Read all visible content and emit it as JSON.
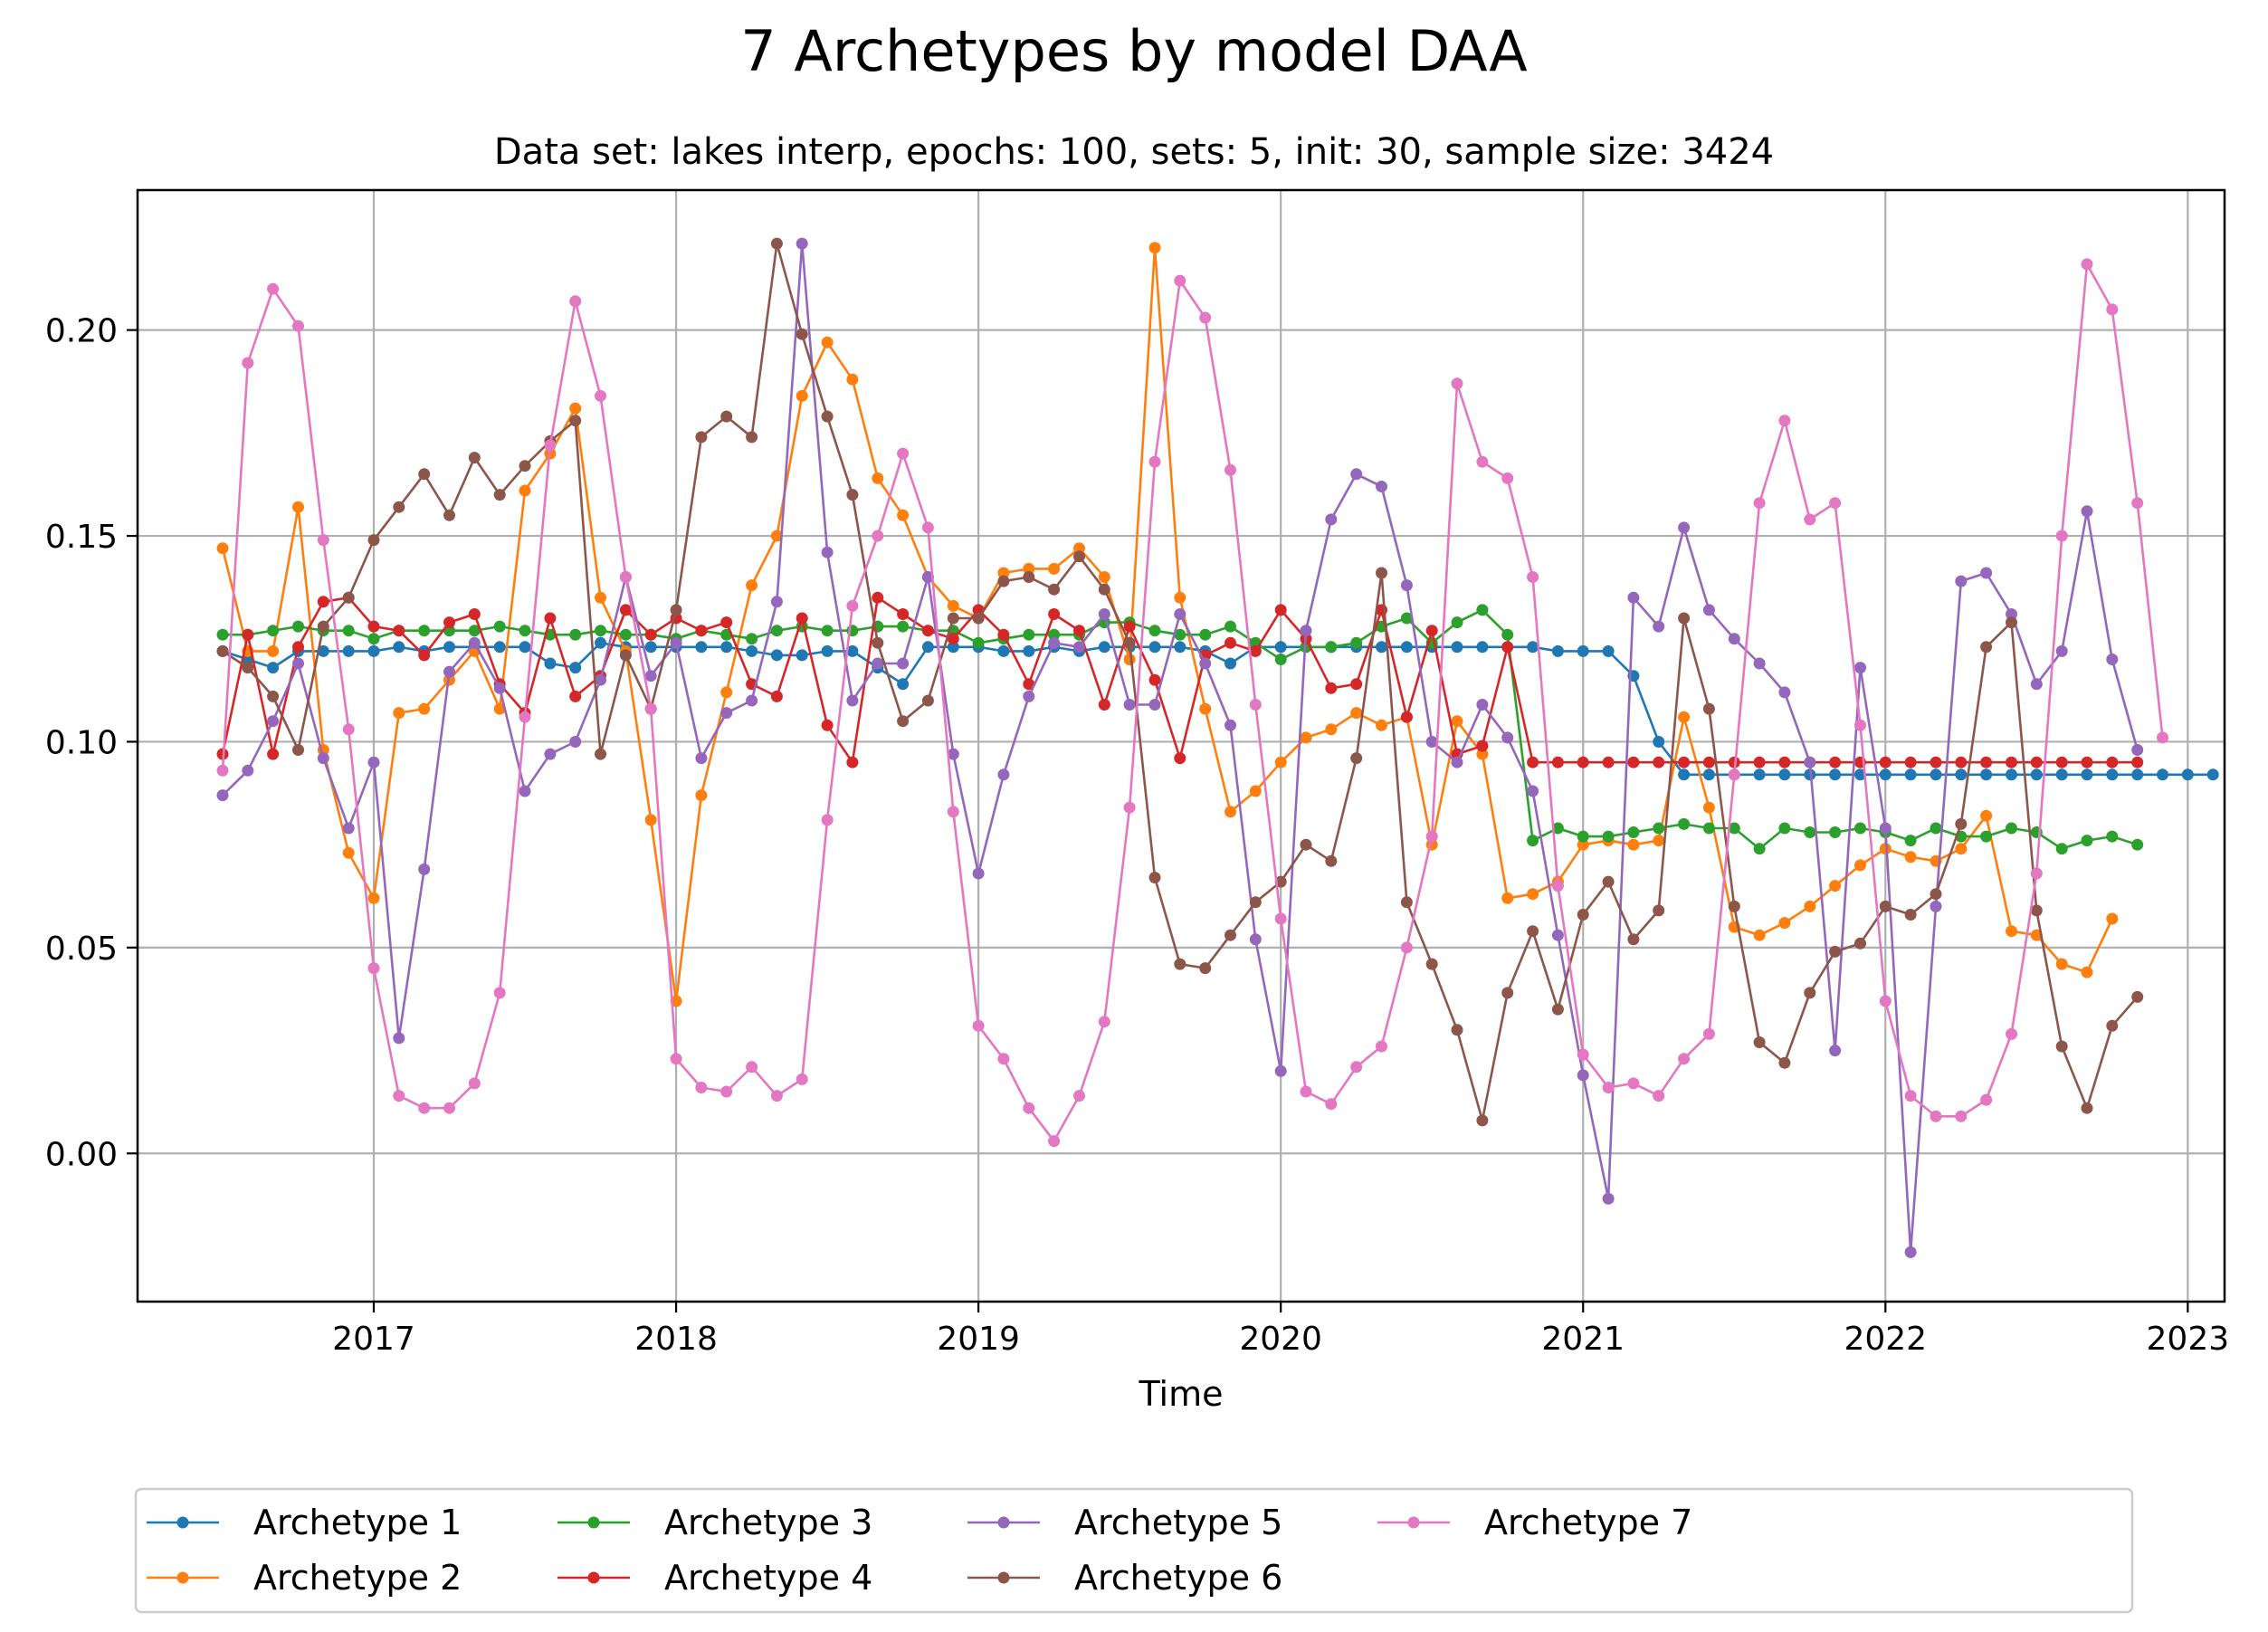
{
  "chart_data": {
    "type": "line",
    "title": "7 Archetypes by model DAA",
    "subtitle": "Data set: lakes interp, epochs: 100, sets: 5, init: 30, sample size: 3424",
    "xlabel": "Time",
    "ylabel": "",
    "x_range": [
      "2016-03-20",
      "2023-02-15"
    ],
    "ylim": [
      -0.036,
      0.234
    ],
    "x_ticks": [
      "2017",
      "2018",
      "2019",
      "2020",
      "2021",
      "2022",
      "2023"
    ],
    "y_ticks": [
      "0.00",
      "0.05",
      "0.10",
      "0.15",
      "0.20"
    ],
    "grid": true,
    "legend": {
      "position": "bottom-outside",
      "columns": 5
    },
    "x_start": "2016-07-01",
    "x_step": "monthly",
    "series": [
      {
        "name": "Archetype 1",
        "color": "#1f77b4",
        "values": [
          0.122,
          0.12,
          0.118,
          0.122,
          0.122,
          0.122,
          0.122,
          0.123,
          0.122,
          0.123,
          0.123,
          0.123,
          0.123,
          0.119,
          0.118,
          0.124,
          0.123,
          0.123,
          0.123,
          0.123,
          0.123,
          0.122,
          0.121,
          0.121,
          0.122,
          0.122,
          0.118,
          0.114,
          0.123,
          0.123,
          0.123,
          0.122,
          0.122,
          0.123,
          0.122,
          0.123,
          0.123,
          0.123,
          0.123,
          0.122,
          0.119,
          0.123,
          0.123,
          0.123,
          0.123,
          0.123,
          0.123,
          0.123,
          0.123,
          0.123,
          0.123,
          0.123,
          0.123,
          0.122,
          0.122,
          0.122,
          0.116,
          0.1,
          0.092,
          0.092,
          0.092,
          0.092,
          0.092,
          0.092,
          0.092,
          0.092,
          0.092,
          0.092,
          0.092,
          0.092,
          0.092,
          0.092,
          0.092,
          0.092,
          0.092,
          0.092,
          0.092,
          0.092,
          0.092,
          0.092
        ]
      },
      {
        "name": "Archetype 2",
        "color": "#ff7f0e",
        "values": [
          0.147,
          0.122,
          0.122,
          0.157,
          0.098,
          0.073,
          0.062,
          0.107,
          0.108,
          0.115,
          0.122,
          0.108,
          0.161,
          0.17,
          0.181,
          0.135,
          0.122,
          0.081,
          0.037,
          0.087,
          0.112,
          0.138,
          0.15,
          0.184,
          0.197,
          0.188,
          0.164,
          0.155,
          0.14,
          0.133,
          0.13,
          0.141,
          0.142,
          0.142,
          0.147,
          0.14,
          0.12,
          0.22,
          0.135,
          0.108,
          0.083,
          0.088,
          0.095,
          0.101,
          0.103,
          0.107,
          0.104,
          0.106,
          0.075,
          0.105,
          0.097,
          0.062,
          0.063,
          0.066,
          0.075,
          0.076,
          0.075,
          0.076,
          0.106,
          0.084,
          0.055,
          0.053,
          0.056,
          0.06,
          0.065,
          0.07,
          0.074,
          0.072,
          0.071,
          0.074,
          0.082,
          0.054,
          0.053,
          0.046,
          0.044,
          0.057
        ]
      },
      {
        "name": "Archetype 3",
        "color": "#2ca02c",
        "values": [
          0.126,
          0.126,
          0.127,
          0.128,
          0.127,
          0.127,
          0.125,
          0.127,
          0.127,
          0.127,
          0.127,
          0.128,
          0.127,
          0.126,
          0.126,
          0.127,
          0.126,
          0.126,
          0.125,
          0.127,
          0.126,
          0.125,
          0.127,
          0.128,
          0.127,
          0.127,
          0.128,
          0.128,
          0.127,
          0.127,
          0.124,
          0.125,
          0.126,
          0.126,
          0.126,
          0.129,
          0.129,
          0.127,
          0.126,
          0.126,
          0.128,
          0.124,
          0.12,
          0.123,
          0.123,
          0.124,
          0.128,
          0.13,
          0.124,
          0.129,
          0.132,
          0.126,
          0.076,
          0.079,
          0.077,
          0.077,
          0.078,
          0.079,
          0.08,
          0.079,
          0.079,
          0.074,
          0.079,
          0.078,
          0.078,
          0.079,
          0.078,
          0.076,
          0.079,
          0.077,
          0.077,
          0.079,
          0.078,
          0.074,
          0.076,
          0.077,
          0.075
        ]
      },
      {
        "name": "Archetype 4",
        "color": "#d62728",
        "values": [
          0.097,
          0.126,
          0.097,
          0.123,
          0.134,
          0.135,
          0.128,
          0.127,
          0.121,
          0.129,
          0.131,
          0.114,
          0.107,
          0.13,
          0.111,
          0.116,
          0.132,
          0.126,
          0.13,
          0.127,
          0.129,
          0.114,
          0.111,
          0.13,
          0.104,
          0.095,
          0.135,
          0.131,
          0.127,
          0.125,
          0.132,
          0.126,
          0.114,
          0.131,
          0.127,
          0.109,
          0.128,
          0.115,
          0.096,
          0.121,
          0.124,
          0.122,
          0.132,
          0.125,
          0.113,
          0.114,
          0.132,
          0.106,
          0.127,
          0.097,
          0.099,
          0.123,
          0.095,
          0.095,
          0.095,
          0.095,
          0.095,
          0.095,
          0.095,
          0.095,
          0.095,
          0.095,
          0.095,
          0.095,
          0.095,
          0.095,
          0.095,
          0.095,
          0.095,
          0.095,
          0.095,
          0.095,
          0.095,
          0.095,
          0.095,
          0.095,
          0.095
        ]
      },
      {
        "name": "Archetype 5",
        "color": "#9467bd",
        "values": [
          0.087,
          0.093,
          0.105,
          0.119,
          0.096,
          0.079,
          0.095,
          0.028,
          0.069,
          0.117,
          0.124,
          0.113,
          0.088,
          0.097,
          0.1,
          0.115,
          0.14,
          0.116,
          0.124,
          0.096,
          0.107,
          0.11,
          0.134,
          0.221,
          0.146,
          0.11,
          0.119,
          0.119,
          0.14,
          0.097,
          0.068,
          0.092,
          0.111,
          0.124,
          0.123,
          0.131,
          0.109,
          0.109,
          0.131,
          0.119,
          0.104,
          0.052,
          0.02,
          0.127,
          0.154,
          0.165,
          0.162,
          0.138,
          0.1,
          0.095,
          0.109,
          0.101,
          0.088,
          0.053,
          0.019,
          -0.011,
          0.135,
          0.128,
          0.152,
          0.132,
          0.125,
          0.119,
          0.112,
          0.095,
          0.025,
          0.118,
          0.079,
          -0.024,
          0.06,
          0.139,
          0.141,
          0.131,
          0.114,
          0.122,
          0.156,
          0.12,
          0.098
        ]
      },
      {
        "name": "Archetype 6",
        "color": "#8c564b",
        "values": [
          0.122,
          0.118,
          0.111,
          0.098,
          0.128,
          0.135,
          0.149,
          0.157,
          0.165,
          0.155,
          0.169,
          0.16,
          0.167,
          0.173,
          0.178,
          0.097,
          0.121,
          0.108,
          0.132,
          0.174,
          0.179,
          0.174,
          0.221,
          0.199,
          0.179,
          0.16,
          0.124,
          0.105,
          0.11,
          0.13,
          0.13,
          0.139,
          0.14,
          0.137,
          0.145,
          0.137,
          0.124,
          0.067,
          0.046,
          0.045,
          0.053,
          0.061,
          0.066,
          0.075,
          0.071,
          0.096,
          0.141,
          0.061,
          0.046,
          0.03,
          0.008,
          0.039,
          0.054,
          0.035,
          0.058,
          0.066,
          0.052,
          0.059,
          0.13,
          0.108,
          0.06,
          0.027,
          0.022,
          0.039,
          0.049,
          0.051,
          0.06,
          0.058,
          0.063,
          0.08,
          0.123,
          0.129,
          0.059,
          0.026,
          0.011,
          0.031,
          0.038
        ]
      },
      {
        "name": "Archetype 7",
        "color": "#e377c2",
        "values": [
          0.093,
          0.192,
          0.21,
          0.201,
          0.149,
          0.103,
          0.045,
          0.014,
          0.011,
          0.011,
          0.017,
          0.039,
          0.106,
          0.172,
          0.207,
          0.184,
          0.14,
          0.108,
          0.023,
          0.016,
          0.015,
          0.021,
          0.014,
          0.018,
          0.081,
          0.133,
          0.15,
          0.17,
          0.152,
          0.083,
          0.031,
          0.023,
          0.011,
          0.003,
          0.014,
          0.032,
          0.084,
          0.168,
          0.212,
          0.203,
          0.166,
          0.109,
          0.057,
          0.015,
          0.012,
          0.021,
          0.026,
          0.05,
          0.077,
          0.187,
          0.168,
          0.164,
          0.14,
          0.065,
          0.024,
          0.016,
          0.017,
          0.014,
          0.023,
          0.029,
          0.092,
          0.158,
          0.178,
          0.154,
          0.158,
          0.104,
          0.037,
          0.014,
          0.009,
          0.009,
          0.013,
          0.029,
          0.068,
          0.15,
          0.216,
          0.205,
          0.158,
          0.101
        ]
      }
    ]
  }
}
